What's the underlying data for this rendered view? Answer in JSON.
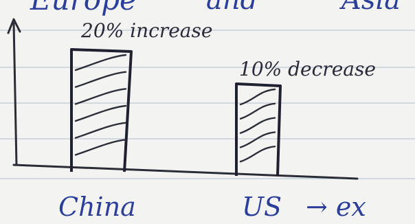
{
  "header": {
    "partial_text_left": "Europe",
    "partial_text_middle": "and",
    "partial_text_right": "Asia"
  },
  "chart_data": {
    "type": "bar",
    "categories": [
      "China",
      "US"
    ],
    "values": [
      20,
      -10
    ],
    "annotations": [
      "20% increase",
      "10% decrease"
    ],
    "title": "",
    "xlabel": "",
    "ylabel": "",
    "grid": false
  },
  "footer": {
    "arrow_text": "→ ex"
  },
  "colors": {
    "paper": "#f3f3f1",
    "ink": "#1f2130",
    "blue_ink": "#2b3f9a",
    "rule_line": "#b9c7d6"
  }
}
